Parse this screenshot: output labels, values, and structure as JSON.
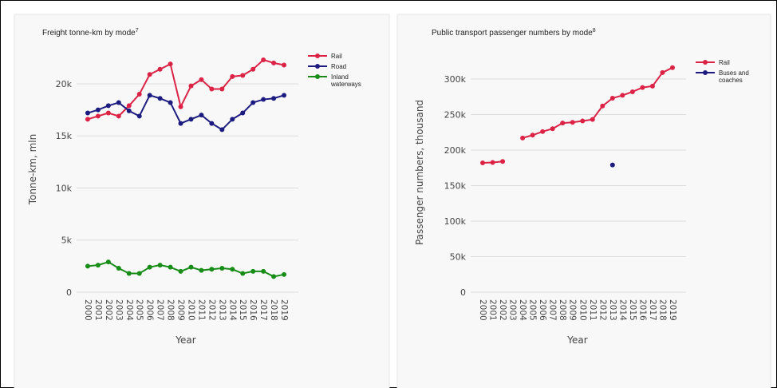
{
  "chart_data": [
    {
      "type": "line",
      "title": "Freight tonne-km by mode",
      "footnote": "7",
      "x_label": "Year",
      "y_label": "Tonne-km, mln",
      "x": [
        2000,
        2001,
        2002,
        2003,
        2004,
        2005,
        2006,
        2007,
        2008,
        2009,
        2010,
        2011,
        2012,
        2013,
        2014,
        2015,
        2016,
        2017,
        2018,
        2019
      ],
      "xlim": [
        1999,
        2020
      ],
      "ylim": [
        0,
        23600
      ],
      "yticks": [
        0,
        {
          "value": 5000,
          "label": "5k"
        },
        {
          "value": 10000,
          "label": "10k"
        },
        {
          "value": 15000,
          "label": "15k"
        },
        {
          "value": 20000,
          "label": "20k"
        }
      ],
      "grid": true,
      "legend": "right",
      "series": [
        {
          "name": "Rail",
          "color": "#dc2346",
          "values": [
            16600,
            16900,
            17200,
            16900,
            17900,
            19000,
            20900,
            21400,
            21900,
            17800,
            19800,
            20400,
            19500,
            19500,
            20700,
            20800,
            21400,
            22300,
            22000,
            21800
          ]
        },
        {
          "name": "Road",
          "color": "#1c1c80",
          "values": [
            17200,
            17500,
            17900,
            18200,
            17400,
            16900,
            18900,
            18600,
            18200,
            16200,
            16600,
            17000,
            16200,
            15600,
            16600,
            17200,
            18200,
            18500,
            18600,
            18900
          ]
        },
        {
          "name": "Inland waterways",
          "color": "#178c17",
          "values": [
            2500,
            2600,
            2900,
            2300,
            1800,
            1800,
            2400,
            2600,
            2400,
            2000,
            2400,
            2100,
            2200,
            2300,
            2200,
            1800,
            2000,
            2000,
            1500,
            1700
          ]
        }
      ]
    },
    {
      "type": "line",
      "title": "Public transport passenger numbers by mode",
      "footnote": "8",
      "x_label": "Year",
      "y_label": "Passenger numbers, thousand",
      "x": [
        2000,
        2001,
        2002,
        2003,
        2004,
        2005,
        2006,
        2007,
        2008,
        2009,
        2010,
        2011,
        2012,
        2013,
        2014,
        2015,
        2016,
        2017,
        2018,
        2019
      ],
      "xlim": [
        1999,
        2020
      ],
      "ylim": [
        0,
        337000
      ],
      "yticks": [
        0,
        {
          "value": 50000,
          "label": "50k"
        },
        {
          "value": 100000,
          "label": "100k"
        },
        {
          "value": 150000,
          "label": "150k"
        },
        {
          "value": 200000,
          "label": "200k"
        },
        {
          "value": 250000,
          "label": "250k"
        },
        {
          "value": 300000,
          "label": "300k"
        }
      ],
      "grid": true,
      "legend": "right",
      "series": [
        {
          "name": "Rail",
          "color": "#dc2346",
          "values": [
            182000,
            182500,
            184000,
            null,
            217000,
            221000,
            226000,
            230000,
            238000,
            239000,
            241000,
            243000,
            262000,
            273000,
            277000,
            282000,
            288000,
            290000,
            309000,
            316000
          ]
        },
        {
          "name": "Buses and coaches",
          "color": "#1c1c80",
          "values": [
            null,
            null,
            null,
            null,
            null,
            null,
            null,
            null,
            null,
            null,
            null,
            null,
            null,
            179000,
            null,
            null,
            null,
            null,
            null,
            null
          ]
        }
      ]
    }
  ]
}
